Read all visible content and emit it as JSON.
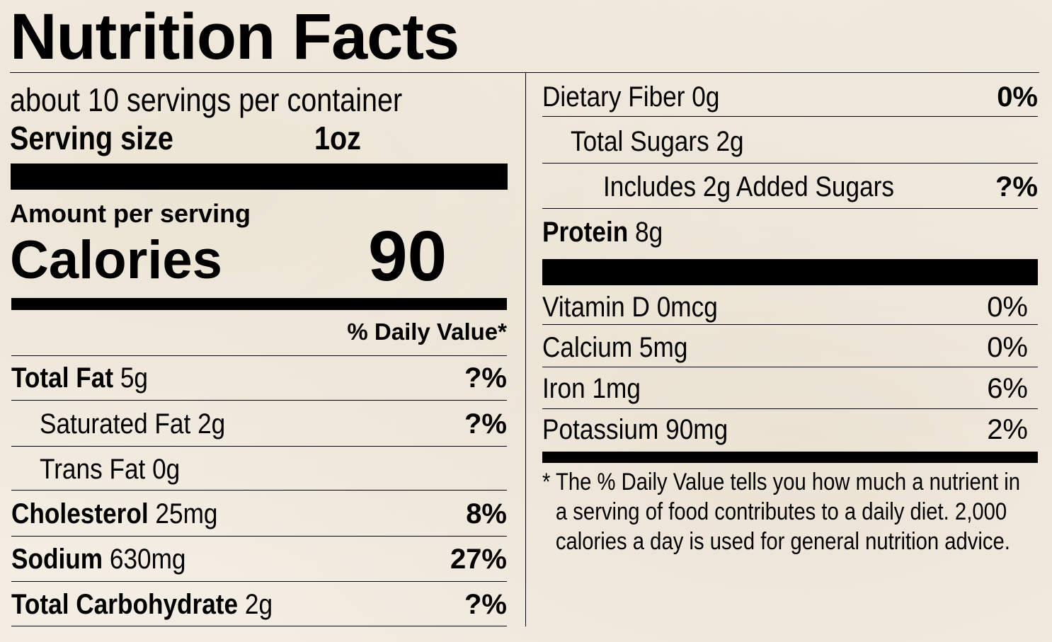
{
  "title": "Nutrition Facts",
  "servings_per_container": "about 10 servings per container",
  "serving_size": {
    "label": "Serving size",
    "value": "1oz"
  },
  "amount_per_serving": "Amount per serving",
  "calories": {
    "label": "Calories",
    "value": "90"
  },
  "daily_value_header": "% Daily Value*",
  "left_nutrients": [
    {
      "name": "Total Fat",
      "amount": "5g",
      "dv": "?%"
    },
    {
      "name": "Saturated Fat",
      "amount": "2g",
      "dv": "?%"
    },
    {
      "name": "Trans Fat",
      "amount": "0g",
      "dv": ""
    },
    {
      "name": "Cholesterol",
      "amount": "25mg",
      "dv": "8%"
    },
    {
      "name": "Sodium",
      "amount": "630mg",
      "dv": "27%"
    },
    {
      "name": "Total Carbohydrate",
      "amount": "2g",
      "dv": "?%"
    }
  ],
  "right_nutrients": [
    {
      "name": "Dietary Fiber",
      "amount": "0g",
      "dv": "0%"
    },
    {
      "name": "Total Sugars",
      "amount": "2g",
      "dv": ""
    },
    {
      "name": "Includes 2g Added Sugars",
      "amount": "",
      "dv": "?%"
    },
    {
      "name": "Protein",
      "amount": "8g",
      "dv": ""
    }
  ],
  "vitamins": [
    {
      "name": "Vitamin D",
      "amount": "0mcg",
      "dv": "0%"
    },
    {
      "name": "Calcium",
      "amount": "5mg",
      "dv": "0%"
    },
    {
      "name": "Iron",
      "amount": "1mg",
      "dv": "6%"
    },
    {
      "name": "Potassium",
      "amount": "90mg",
      "dv": "2%"
    }
  ],
  "footnote": {
    "line1": "* The % Daily Value tells you how much a nutrient in",
    "line2": "a serving of food contributes to a daily diet. 2,000",
    "line3": "calories a day is used for general nutrition advice."
  }
}
